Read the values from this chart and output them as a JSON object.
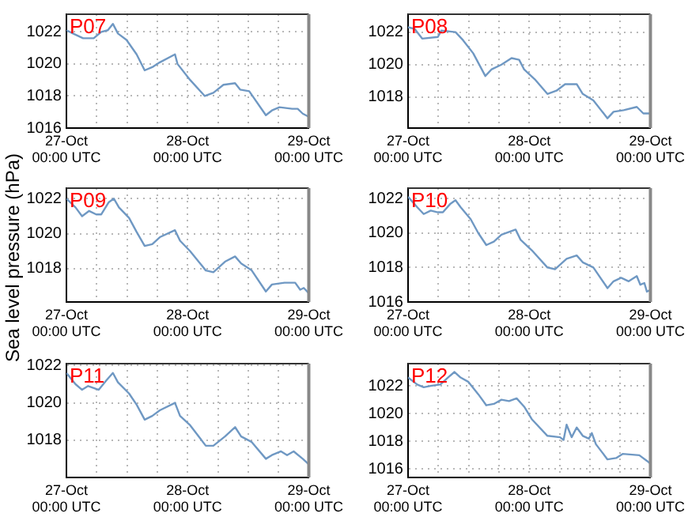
{
  "chart_data": [
    {
      "type": "line",
      "title": "P07",
      "color": "#6f98c3",
      "marker": "none",
      "grid": true,
      "xlim": [
        "--10-27T00:00",
        "--10-29T00:00"
      ],
      "ylim": [
        1016,
        1023.1
      ],
      "yticks": [
        1016,
        1018,
        1020,
        1022
      ],
      "xticks": [
        {
          "value": "--10-27T00:00",
          "label": "27-Oct\n00:00 UTC"
        },
        {
          "value": "--10-27T06:00",
          "label": null
        },
        {
          "value": "--10-27T12:00",
          "label": null
        },
        {
          "value": "--10-27T18:00",
          "label": null
        },
        {
          "value": "--10-28T00:00",
          "label": "28-Oct\n00:00 UTC"
        },
        {
          "value": "--10-28T06:00",
          "label": null
        },
        {
          "value": "--10-28T12:00",
          "label": null
        },
        {
          "value": "--10-28T18:00",
          "label": null
        },
        {
          "value": "--10-29T00:00",
          "label": "29-Oct\n00:00 UTC"
        }
      ],
      "x": [
        "--10-27T00:00",
        "--10-27T01:18",
        "--10-27T03:18",
        "--10-27T05:24",
        "--10-27T06:54",
        "--10-27T08:12",
        "--10-27T09:12",
        "--10-27T10:12",
        "--10-27T11:54",
        "--10-27T13:54",
        "--10-27T15:30",
        "--10-27T17:00",
        "--10-27T18:30",
        "--10-27T21:30",
        "--10-27T22:00",
        "--10-28T00:30",
        "--10-28T03:24",
        "--10-28T05:06",
        "--10-28T07:06",
        "--10-28T09:24",
        "--10-28T10:24",
        "--10-28T12:12",
        "--10-28T15:30",
        "--10-28T16:42",
        "--10-28T18:12",
        "--10-28T20:42",
        "--10-28T21:48",
        "--10-28T22:48",
        "--10-29T00:00"
      ],
      "values": [
        1022.1,
        1021.9,
        1021.6,
        1021.6,
        1022.0,
        1022.1,
        1022.5,
        1021.9,
        1021.5,
        1020.6,
        1019.6,
        1019.8,
        1020.1,
        1020.6,
        1020.0,
        1019.0,
        1018.0,
        1018.2,
        1018.7,
        1018.8,
        1018.4,
        1018.3,
        1016.8,
        1017.1,
        1017.3,
        1017.2,
        1017.2,
        1016.9,
        1016.7
      ]
    },
    {
      "type": "line",
      "title": "P08",
      "color": "#6f98c3",
      "marker": "none",
      "grid": true,
      "xlim": [
        "--10-27T00:00",
        "--10-29T00:00"
      ],
      "ylim": [
        1016.1,
        1023.1
      ],
      "yticks": [
        1018,
        1020,
        1022
      ],
      "xticks": [
        {
          "value": "--10-27T00:00",
          "label": "27-Oct\n00:00 UTC"
        },
        {
          "value": "--10-27T06:00",
          "label": null
        },
        {
          "value": "--10-27T12:00",
          "label": null
        },
        {
          "value": "--10-27T18:00",
          "label": null
        },
        {
          "value": "--10-28T00:00",
          "label": "28-Oct\n00:00 UTC"
        },
        {
          "value": "--10-28T06:00",
          "label": null
        },
        {
          "value": "--10-28T12:00",
          "label": null
        },
        {
          "value": "--10-28T18:00",
          "label": null
        },
        {
          "value": "--10-29T00:00",
          "label": "29-Oct\n00:00 UTC"
        }
      ],
      "x": [
        "--10-27T00:00",
        "--10-27T01:18",
        "--10-27T02:48",
        "--10-27T05:54",
        "--10-27T06:36",
        "--10-27T09:24",
        "--10-27T10:54",
        "--10-27T12:54",
        "--10-27T15:18",
        "--10-27T16:30",
        "--10-27T18:30",
        "--10-27T20:30",
        "--10-27T22:00",
        "--10-27T23:00",
        "--10-28T01:06",
        "--10-28T03:36",
        "--10-28T05:24",
        "--10-28T07:06",
        "--10-28T09:24",
        "--10-28T10:36",
        "--10-28T12:42",
        "--10-28T15:30",
        "--10-28T16:42",
        "--10-28T18:42",
        "--10-28T21:18",
        "--10-28T22:36",
        "--10-29T00:00"
      ],
      "values": [
        1022.3,
        1022.2,
        1021.6,
        1021.7,
        1022.1,
        1022.0,
        1021.5,
        1020.7,
        1019.3,
        1019.7,
        1020.0,
        1020.4,
        1020.3,
        1019.7,
        1019.1,
        1018.2,
        1018.4,
        1018.8,
        1018.8,
        1018.2,
        1017.8,
        1016.7,
        1017.1,
        1017.2,
        1017.4,
        1017.0,
        1017.0
      ]
    },
    {
      "type": "line",
      "title": "P09",
      "ylabel": "Sea level pressure (hPa)",
      "color": "#6f98c3",
      "marker": "none",
      "grid": true,
      "xlim": [
        "--10-27T00:00",
        "--10-29T00:00"
      ],
      "ylim": [
        1016.1,
        1022.6
      ],
      "yticks": [
        1018,
        1020,
        1022
      ],
      "xticks": [
        {
          "value": "--10-27T00:00",
          "label": "27-Oct\n00:00 UTC"
        },
        {
          "value": "--10-27T06:00",
          "label": null
        },
        {
          "value": "--10-27T12:00",
          "label": null
        },
        {
          "value": "--10-27T18:00",
          "label": null
        },
        {
          "value": "--10-28T00:00",
          "label": "28-Oct\n00:00 UTC"
        },
        {
          "value": "--10-28T06:00",
          "label": null
        },
        {
          "value": "--10-28T12:00",
          "label": null
        },
        {
          "value": "--10-28T18:00",
          "label": null
        },
        {
          "value": "--10-29T00:00",
          "label": "29-Oct\n00:00 UTC"
        }
      ],
      "x": [
        "--10-27T00:00",
        "--10-27T01:48",
        "--10-27T03:06",
        "--10-27T04:30",
        "--10-27T05:54",
        "--10-27T06:54",
        "--10-27T08:24",
        "--10-27T09:24",
        "--10-27T10:24",
        "--10-27T12:24",
        "--10-27T13:54",
        "--10-27T15:30",
        "--10-27T17:00",
        "--10-27T18:30",
        "--10-27T21:30",
        "--10-27T22:30",
        "--10-28T00:30",
        "--10-28T03:36",
        "--10-28T05:06",
        "--10-28T07:24",
        "--10-28T09:24",
        "--10-28T10:36",
        "--10-28T12:42",
        "--10-28T15:30",
        "--10-28T16:42",
        "--10-28T19:12",
        "--10-28T21:18",
        "--10-28T22:18",
        "--10-28T23:00",
        "--10-29T00:00"
      ],
      "values": [
        1022.0,
        1021.5,
        1021.0,
        1021.3,
        1021.1,
        1021.1,
        1021.8,
        1022.0,
        1021.5,
        1020.9,
        1020.1,
        1019.3,
        1019.4,
        1019.8,
        1020.2,
        1019.6,
        1019.0,
        1017.9,
        1017.8,
        1018.4,
        1018.7,
        1018.3,
        1017.9,
        1016.7,
        1017.1,
        1017.2,
        1017.2,
        1016.8,
        1016.9,
        1016.6
      ]
    },
    {
      "type": "line",
      "title": "P10",
      "color": "#6f98c3",
      "marker": "none",
      "grid": true,
      "xlim": [
        "--10-27T00:00",
        "--10-29T00:00"
      ],
      "ylim": [
        1016,
        1022.6
      ],
      "yticks": [
        1016,
        1018,
        1020,
        1022
      ],
      "xticks": [
        {
          "value": "--10-27T00:00",
          "label": "27-Oct\n00:00 UTC"
        },
        {
          "value": "--10-27T06:00",
          "label": null
        },
        {
          "value": "--10-27T12:00",
          "label": null
        },
        {
          "value": "--10-27T18:00",
          "label": null
        },
        {
          "value": "--10-28T00:00",
          "label": "28-Oct\n00:00 UTC"
        },
        {
          "value": "--10-28T06:00",
          "label": null
        },
        {
          "value": "--10-28T12:00",
          "label": null
        },
        {
          "value": "--10-28T18:00",
          "label": null
        },
        {
          "value": "--10-29T00:00",
          "label": "29-Oct\n00:00 UTC"
        }
      ],
      "x": [
        "--10-27T00:00",
        "--10-27T01:48",
        "--10-27T03:06",
        "--10-27T04:30",
        "--10-27T05:54",
        "--10-27T06:54",
        "--10-27T08:24",
        "--10-27T09:24",
        "--10-27T10:24",
        "--10-27T12:24",
        "--10-27T13:54",
        "--10-27T15:30",
        "--10-27T17:00",
        "--10-27T18:30",
        "--10-27T21:18",
        "--10-27T22:18",
        "--10-28T00:30",
        "--10-28T03:36",
        "--10-28T05:06",
        "--10-28T07:24",
        "--10-28T09:24",
        "--10-28T10:36",
        "--10-28T12:42",
        "--10-28T15:30",
        "--10-28T16:42",
        "--10-28T18:12",
        "--10-28T19:42",
        "--10-28T21:18",
        "--10-28T22:00",
        "--10-28T22:48",
        "--10-28T23:18",
        "--10-29T00:00"
      ],
      "values": [
        1022.1,
        1021.5,
        1021.1,
        1021.3,
        1021.2,
        1021.2,
        1021.7,
        1021.9,
        1021.5,
        1020.8,
        1020.0,
        1019.3,
        1019.5,
        1019.9,
        1020.2,
        1019.6,
        1019.0,
        1018.0,
        1017.9,
        1018.5,
        1018.7,
        1018.3,
        1018.0,
        1016.8,
        1017.2,
        1017.4,
        1017.2,
        1017.5,
        1017.0,
        1017.1,
        1016.6,
        1016.7
      ]
    },
    {
      "type": "line",
      "title": "P11",
      "color": "#6f98c3",
      "marker": "none",
      "grid": true,
      "xlim": [
        "--10-27T00:00",
        "--10-29T00:00"
      ],
      "ylim": [
        1016,
        1022.1
      ],
      "yticks": [
        1018,
        1020,
        1022
      ],
      "xticks": [
        {
          "value": "--10-27T00:00",
          "label": "27-Oct\n00:00 UTC"
        },
        {
          "value": "--10-27T06:00",
          "label": null
        },
        {
          "value": "--10-27T12:00",
          "label": null
        },
        {
          "value": "--10-27T18:00",
          "label": null
        },
        {
          "value": "--10-28T00:00",
          "label": "28-Oct\n00:00 UTC"
        },
        {
          "value": "--10-28T06:00",
          "label": null
        },
        {
          "value": "--10-28T12:00",
          "label": null
        },
        {
          "value": "--10-28T18:00",
          "label": null
        },
        {
          "value": "--10-29T00:00",
          "label": "29-Oct\n00:00 UTC"
        }
      ],
      "x": [
        "--10-27T00:00",
        "--10-27T01:48",
        "--10-27T03:06",
        "--10-27T04:18",
        "--10-27T06:24",
        "--10-27T07:54",
        "--10-27T09:12",
        "--10-27T10:12",
        "--10-27T12:24",
        "--10-27T13:54",
        "--10-27T15:30",
        "--10-27T17:00",
        "--10-27T18:30",
        "--10-27T21:30",
        "--10-27T22:30",
        "--10-28T00:30",
        "--10-28T03:36",
        "--10-28T05:06",
        "--10-28T07:24",
        "--10-28T09:24",
        "--10-28T10:36",
        "--10-28T12:42",
        "--10-28T15:30",
        "--10-28T16:42",
        "--10-28T18:30",
        "--10-28T19:42",
        "--10-28T21:00",
        "--10-28T22:48",
        "--10-29T00:00"
      ],
      "values": [
        1021.6,
        1021.0,
        1020.7,
        1020.9,
        1020.7,
        1021.2,
        1021.6,
        1021.1,
        1020.5,
        1019.9,
        1019.1,
        1019.3,
        1019.6,
        1020.0,
        1019.3,
        1018.8,
        1017.7,
        1017.7,
        1018.2,
        1018.7,
        1018.2,
        1017.9,
        1017.0,
        1017.2,
        1017.4,
        1017.2,
        1017.4,
        1017.0,
        1016.7
      ]
    },
    {
      "type": "line",
      "title": "P12",
      "color": "#6f98c3",
      "marker": "none",
      "grid": true,
      "xlim": [
        "--10-27T00:00",
        "--10-29T00:00"
      ],
      "ylim": [
        1015.4,
        1023.6
      ],
      "yticks": [
        1016,
        1018,
        1020,
        1022
      ],
      "xticks": [
        {
          "value": "--10-27T00:00",
          "label": "27-Oct\n00:00 UTC"
        },
        {
          "value": "--10-27T06:00",
          "label": null
        },
        {
          "value": "--10-27T12:00",
          "label": null
        },
        {
          "value": "--10-27T18:00",
          "label": null
        },
        {
          "value": "--10-28T00:00",
          "label": "28-Oct\n00:00 UTC"
        },
        {
          "value": "--10-28T06:00",
          "label": null
        },
        {
          "value": "--10-28T12:00",
          "label": null
        },
        {
          "value": "--10-28T18:00",
          "label": null
        },
        {
          "value": "--10-29T00:00",
          "label": "29-Oct\n00:00 UTC"
        }
      ],
      "x": [
        "--10-27T00:00",
        "--10-27T01:48",
        "--10-27T03:06",
        "--10-27T04:30",
        "--10-27T06:24",
        "--10-27T07:54",
        "--10-27T09:12",
        "--10-27T10:24",
        "--10-27T11:54",
        "--10-27T13:54",
        "--10-27T15:30",
        "--10-27T17:00",
        "--10-27T18:30",
        "--10-27T20:00",
        "--10-27T21:30",
        "--10-27T23:00",
        "--10-28T00:30",
        "--10-28T03:36",
        "--10-28T06:06",
        "--10-28T06:48",
        "--10-28T07:24",
        "--10-28T08:24",
        "--10-28T09:24",
        "--10-28T10:36",
        "--10-28T11:48",
        "--10-28T12:24",
        "--10-28T13:12",
        "--10-28T15:30",
        "--10-28T17:12",
        "--10-28T18:30",
        "--10-28T21:48",
        "--10-28T23:18",
        "--10-29T00:00"
      ],
      "values": [
        1022.6,
        1022.1,
        1021.9,
        1022.0,
        1022.1,
        1022.6,
        1023.0,
        1022.6,
        1022.3,
        1021.4,
        1020.6,
        1020.7,
        1021.0,
        1020.9,
        1021.1,
        1020.5,
        1019.6,
        1018.4,
        1018.3,
        1018.1,
        1019.2,
        1018.3,
        1019.0,
        1018.4,
        1018.2,
        1018.6,
        1017.8,
        1016.7,
        1016.8,
        1017.1,
        1017.0,
        1016.6,
        1016.4
      ]
    }
  ]
}
